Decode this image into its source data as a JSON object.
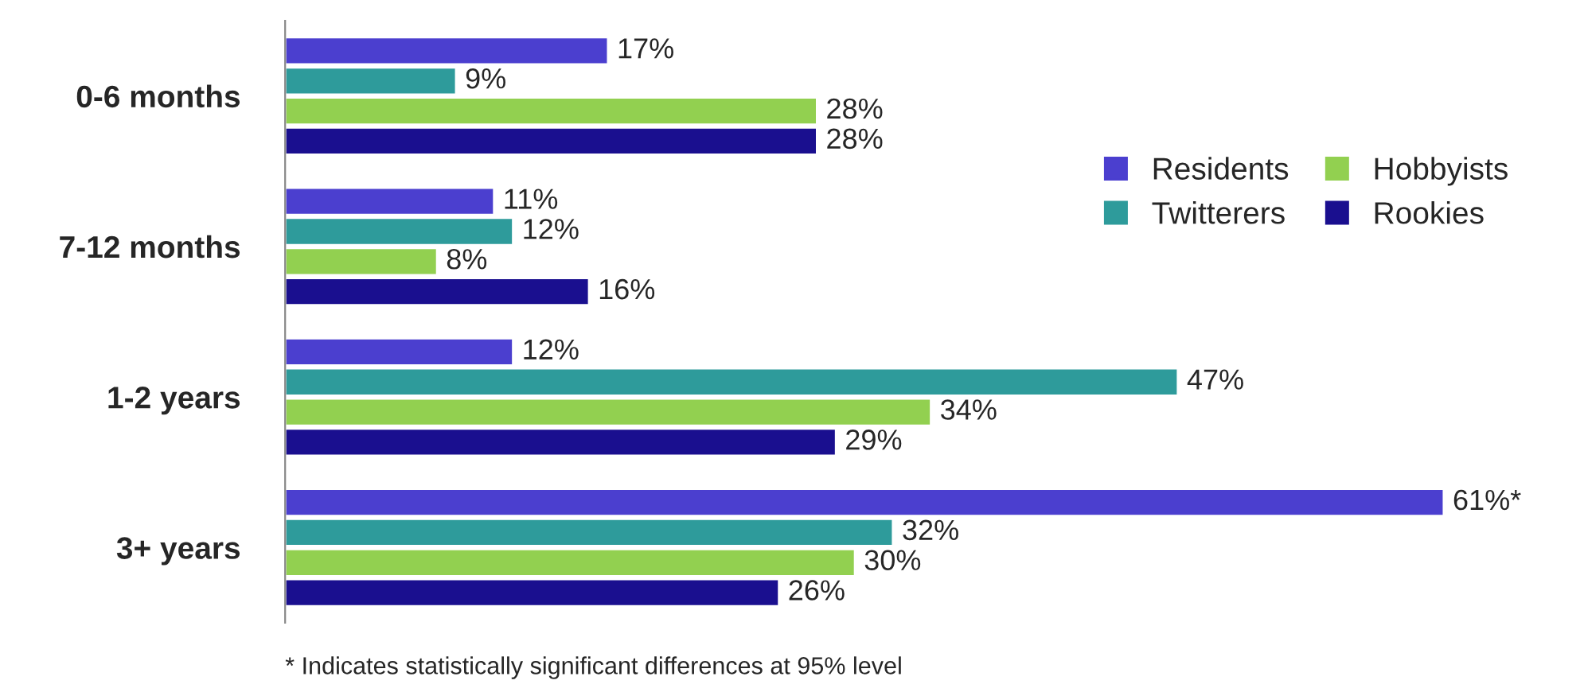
{
  "chart_data": {
    "type": "bar",
    "orientation": "horizontal",
    "categories": [
      "0-6 months",
      "7-12 months",
      "1-2 years",
      "3+ years"
    ],
    "series": [
      {
        "name": "Residents",
        "color": "#4b3fcf",
        "values": [
          17,
          11,
          12,
          61
        ],
        "value_labels": [
          "17%",
          "11%",
          "12%",
          "61%*"
        ]
      },
      {
        "name": "Twitterers",
        "color": "#2e9b9b",
        "values": [
          9,
          12,
          47,
          32
        ],
        "value_labels": [
          "9%",
          "12%",
          "47%",
          "32%"
        ]
      },
      {
        "name": "Hobbyists",
        "color": "#92d050",
        "values": [
          28,
          8,
          34,
          30
        ],
        "value_labels": [
          "28%",
          "8%",
          "34%",
          "30%"
        ]
      },
      {
        "name": "Rookies",
        "color": "#1a0f8f",
        "values": [
          28,
          16,
          29,
          26
        ],
        "value_labels": [
          "28%",
          "16%",
          "29%",
          "26%"
        ]
      }
    ],
    "legend": "right",
    "grid": false,
    "annotations": [
      "* Indicates statistically significant differences at 95% level"
    ]
  }
}
